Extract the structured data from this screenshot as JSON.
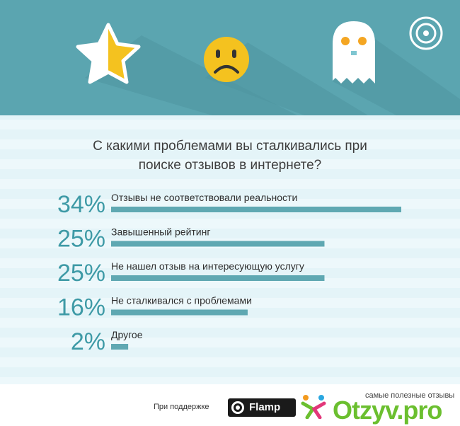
{
  "question": {
    "line1": "С какими проблемами вы сталкивались при",
    "line2": "поиске отзывов в интернете?"
  },
  "header": {
    "icons": [
      "star-icon",
      "sad-face-icon",
      "ghost-icon",
      "target-icon"
    ],
    "colors": {
      "background": "#5ba5b0",
      "star": "#f4c21f",
      "face": "#f4c21f",
      "ghost": "#ffffff"
    }
  },
  "chart_data": {
    "type": "bar",
    "orientation": "horizontal",
    "unit": "%",
    "xlim": [
      0,
      34
    ],
    "bar_color": "#5fa8b2",
    "label_color": "#3e9aa6",
    "categories": [
      "Отзывы не соответствовали реальности",
      "Завышенный рейтинг",
      "Не нашел отзыв на интересующую услугу",
      "Не сталкивался с проблемами",
      "Другое"
    ],
    "values": [
      34,
      25,
      25,
      16,
      2
    ],
    "value_labels": [
      "34%",
      "25%",
      "25%",
      "16%",
      "2%"
    ]
  },
  "footer": {
    "support_label": "При поддержке",
    "partner_name": "Flamp",
    "watermark_tagline": "самые полезные отзывы",
    "watermark_brand": "Otzyv.pro"
  }
}
